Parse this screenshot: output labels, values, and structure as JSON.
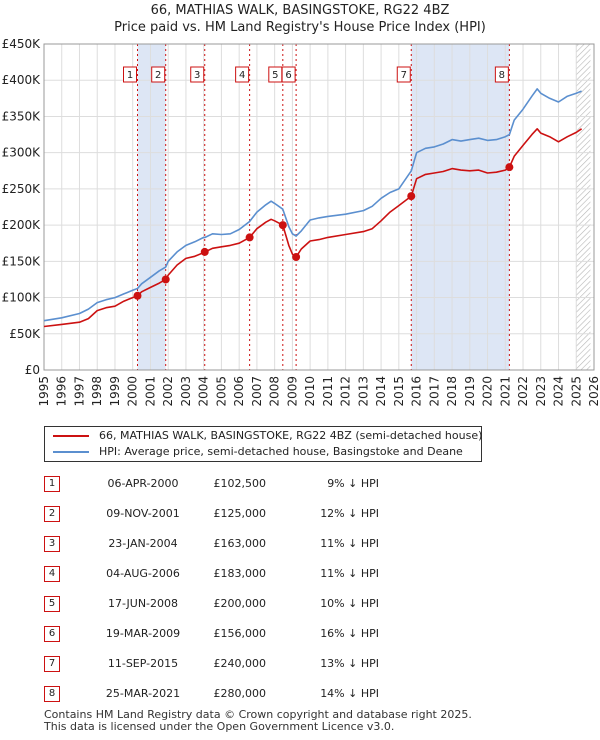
{
  "title": {
    "line1": "66, MATHIAS WALK, BASINGSTOKE, RG22 4BZ",
    "line2": "Price paid vs. HM Land Registry's House Price Index (HPI)"
  },
  "colors": {
    "property": "#cc1111",
    "hpi": "#5b8fcf",
    "shade": "#dde6f5",
    "vline": "#cc1111",
    "grid": "#dddddd"
  },
  "legend": {
    "property": "66, MATHIAS WALK, BASINGSTOKE, RG22 4BZ (semi-detached house)",
    "hpi": "HPI: Average price, semi-detached house, Basingstoke and Deane"
  },
  "sales": [
    {
      "num": "1",
      "date": "06-APR-2000",
      "price": "£102,500",
      "hpi": "9% ↓ HPI"
    },
    {
      "num": "2",
      "date": "09-NOV-2001",
      "price": "£125,000",
      "hpi": "12% ↓ HPI"
    },
    {
      "num": "3",
      "date": "23-JAN-2004",
      "price": "£163,000",
      "hpi": "11% ↓ HPI"
    },
    {
      "num": "4",
      "date": "04-AUG-2006",
      "price": "£183,000",
      "hpi": "11% ↓ HPI"
    },
    {
      "num": "5",
      "date": "17-JUN-2008",
      "price": "£200,000",
      "hpi": "10% ↓ HPI"
    },
    {
      "num": "6",
      "date": "19-MAR-2009",
      "price": "£156,000",
      "hpi": "16% ↓ HPI"
    },
    {
      "num": "7",
      "date": "11-SEP-2015",
      "price": "£240,000",
      "hpi": "13% ↓ HPI"
    },
    {
      "num": "8",
      "date": "25-MAR-2021",
      "price": "£280,000",
      "hpi": "14% ↓ HPI"
    }
  ],
  "footer": {
    "line1": "Contains HM Land Registry data © Crown copyright and database right 2025.",
    "line2": "This data is licensed under the Open Government Licence v3.0."
  },
  "chart_data": {
    "type": "line",
    "title": "66, MATHIAS WALK, BASINGSTOKE, RG22 4BZ",
    "subtitle": "Price paid vs. HM Land Registry's House Price Index (HPI)",
    "xlabel": "",
    "ylabel": "",
    "xlim": [
      1995,
      2026
    ],
    "ylim": [
      0,
      450000
    ],
    "grid": true,
    "legend_position": "bottom",
    "x_ticks": [
      1995,
      1996,
      1997,
      1998,
      1999,
      2000,
      2001,
      2002,
      2003,
      2004,
      2005,
      2006,
      2007,
      2008,
      2009,
      2010,
      2011,
      2012,
      2013,
      2014,
      2015,
      2016,
      2017,
      2018,
      2019,
      2020,
      2021,
      2022,
      2023,
      2024,
      2025,
      2026
    ],
    "y_ticks": [
      0,
      50000,
      100000,
      150000,
      200000,
      250000,
      300000,
      350000,
      400000,
      450000
    ],
    "y_tick_labels": [
      "£0",
      "£50K",
      "£100K",
      "£150K",
      "£200K",
      "£250K",
      "£300K",
      "£350K",
      "£400K",
      "£450K"
    ],
    "forecast_start": 2025.0,
    "shaded_ranges": [
      [
        2000.27,
        2001.86
      ],
      [
        2015.7,
        2021.23
      ]
    ],
    "series": [
      {
        "name": "HPI: Average price, semi-detached house, Basingstoke and Deane",
        "color": "#5b8fcf",
        "x": [
          1995.0,
          1996.0,
          1997.0,
          1997.5,
          1998.0,
          1998.5,
          1999.0,
          1999.5,
          2000.0,
          2000.27,
          2000.5,
          2001.0,
          2001.5,
          2001.86,
          2002.0,
          2002.5,
          2003.0,
          2003.5,
          2004.0,
          2004.08,
          2004.5,
          2005.0,
          2005.5,
          2006.0,
          2006.59,
          2007.0,
          2007.5,
          2007.8,
          2008.0,
          2008.46,
          2008.8,
          2009.0,
          2009.21,
          2009.5,
          2010.0,
          2010.5,
          2011.0,
          2012.0,
          2013.0,
          2013.5,
          2014.0,
          2014.5,
          2015.0,
          2015.7,
          2016.0,
          2016.5,
          2017.0,
          2017.5,
          2018.0,
          2018.5,
          2019.0,
          2019.5,
          2020.0,
          2020.5,
          2021.0,
          2021.23,
          2021.5,
          2022.0,
          2022.5,
          2022.8,
          2023.0,
          2023.5,
          2024.0,
          2024.5,
          2025.0,
          2025.3
        ],
        "y": [
          68000,
          72000,
          78000,
          84000,
          93000,
          97000,
          100000,
          105000,
          110000,
          112500,
          119000,
          128000,
          137000,
          142000,
          150000,
          163000,
          172000,
          177000,
          183000,
          183000,
          188000,
          187000,
          188000,
          194000,
          205000,
          218000,
          228000,
          233000,
          230000,
          222000,
          198000,
          188000,
          185000,
          192000,
          207000,
          210000,
          212000,
          215000,
          220000,
          226000,
          237000,
          245000,
          250000,
          275000,
          300000,
          306000,
          308000,
          312000,
          318000,
          316000,
          318000,
          320000,
          317000,
          318000,
          322000,
          325000,
          345000,
          360000,
          378000,
          388000,
          382000,
          375000,
          370000,
          378000,
          382000,
          385000
        ]
      },
      {
        "name": "66, MATHIAS WALK, BASINGSTOKE, RG22 4BZ (semi-detached house)",
        "color": "#cc1111",
        "x": [
          1995.0,
          1996.0,
          1997.0,
          1997.5,
          1998.0,
          1998.5,
          1999.0,
          1999.5,
          2000.0,
          2000.27,
          2000.5,
          2001.0,
          2001.5,
          2001.86,
          2002.0,
          2002.5,
          2003.0,
          2003.5,
          2004.0,
          2004.08,
          2004.5,
          2005.0,
          2005.5,
          2006.0,
          2006.59,
          2007.0,
          2007.5,
          2007.8,
          2008.0,
          2008.46,
          2008.8,
          2009.0,
          2009.21,
          2009.5,
          2010.0,
          2010.5,
          2011.0,
          2012.0,
          2013.0,
          2013.5,
          2014.0,
          2014.5,
          2015.0,
          2015.7,
          2016.0,
          2016.5,
          2017.0,
          2017.5,
          2018.0,
          2018.5,
          2019.0,
          2019.5,
          2020.0,
          2020.5,
          2021.0,
          2021.23,
          2021.5,
          2022.0,
          2022.5,
          2022.8,
          2023.0,
          2023.5,
          2024.0,
          2024.5,
          2025.0,
          2025.3
        ],
        "y": [
          60000,
          63000,
          66000,
          71000,
          82000,
          86000,
          88000,
          95000,
          100000,
          102500,
          108000,
          114000,
          120000,
          125000,
          131000,
          145000,
          154000,
          157000,
          162000,
          163000,
          168000,
          170000,
          172000,
          175000,
          183000,
          195000,
          204000,
          208000,
          206000,
          200000,
          172000,
          160000,
          156000,
          167000,
          178000,
          180000,
          183000,
          187000,
          191000,
          195000,
          206000,
          218000,
          227000,
          240000,
          264000,
          270000,
          272000,
          274000,
          278000,
          276000,
          275000,
          276000,
          272000,
          273000,
          276000,
          280000,
          295000,
          310000,
          325000,
          333000,
          327000,
          322000,
          315000,
          322000,
          328000,
          333000
        ]
      }
    ],
    "sale_markers": [
      {
        "label": "1",
        "x": 2000.27,
        "y": 102500
      },
      {
        "label": "2",
        "x": 2001.86,
        "y": 125000
      },
      {
        "label": "3",
        "x": 2004.06,
        "y": 163000
      },
      {
        "label": "4",
        "x": 2006.59,
        "y": 183000
      },
      {
        "label": "5",
        "x": 2008.46,
        "y": 200000
      },
      {
        "label": "6",
        "x": 2009.21,
        "y": 156000
      },
      {
        "label": "7",
        "x": 2015.7,
        "y": 240000
      },
      {
        "label": "8",
        "x": 2021.23,
        "y": 280000
      }
    ]
  }
}
